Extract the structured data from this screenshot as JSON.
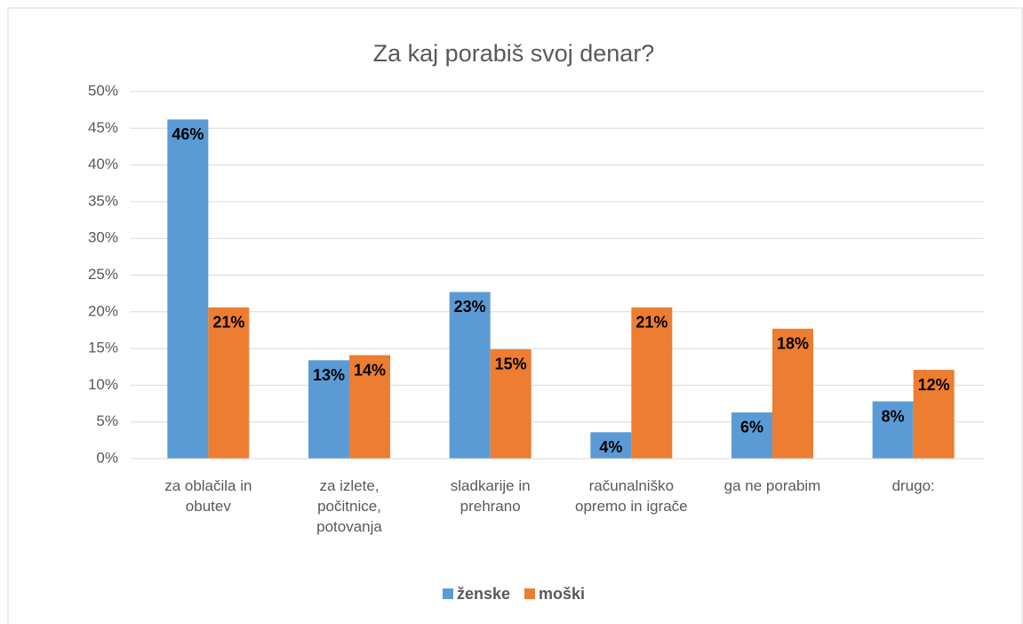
{
  "chart_data": {
    "type": "bar",
    "title": "Za kaj porabiš svoj denar?",
    "categories": [
      "za oblačila in obutev",
      "za izlete, počitnice, potovanja",
      "sladkarije in prehrano",
      "računalniško opremo in igrače",
      "ga ne porabim",
      "drugo:"
    ],
    "series": [
      {
        "name": "ženske",
        "color": "#5b9bd5",
        "values": [
          46.2,
          13.4,
          22.7,
          3.6,
          6.3,
          7.8
        ],
        "value_labels": [
          "46%",
          "13%",
          "23%",
          "4%",
          "6%",
          "8%"
        ]
      },
      {
        "name": "moški",
        "color": "#ed7d31",
        "values": [
          20.6,
          14.1,
          14.9,
          20.6,
          17.7,
          12.1
        ],
        "value_labels": [
          "21%",
          "14%",
          "15%",
          "21%",
          "18%",
          "12%"
        ]
      }
    ],
    "ylim": [
      0,
      50
    ],
    "yticks": [
      {
        "value": 0,
        "label": "0%"
      },
      {
        "value": 5,
        "label": "5%"
      },
      {
        "value": 10,
        "label": "10%"
      },
      {
        "value": 15,
        "label": "15%"
      },
      {
        "value": 20,
        "label": "20%"
      },
      {
        "value": 25,
        "label": "25%"
      },
      {
        "value": 30,
        "label": "30%"
      },
      {
        "value": 35,
        "label": "35%"
      },
      {
        "value": 40,
        "label": "40%"
      },
      {
        "value": 45,
        "label": "45%"
      },
      {
        "value": 50,
        "label": "50%"
      }
    ],
    "grid": true,
    "legend": "bottom"
  }
}
